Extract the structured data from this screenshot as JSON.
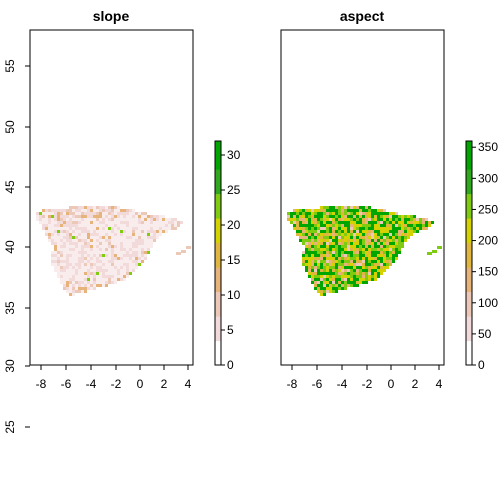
{
  "panels": [
    {
      "title": "slope",
      "y_ticks": [
        "25",
        "30",
        "35",
        "40",
        "45",
        "50",
        "55"
      ],
      "x_ticks": [
        "-8",
        "-6",
        "-4",
        "-2",
        "0",
        "2",
        "4"
      ],
      "legend": {
        "ticks": [
          "0",
          "5",
          "10",
          "15",
          "20",
          "25",
          "30"
        ],
        "min": 0,
        "max": 32
      },
      "palette": [
        "#ffffff",
        "#f2dada",
        "#ecc8b8",
        "#e6b47a",
        "#e0b640",
        "#d4d200",
        "#7ecb10",
        "#2fa81d",
        "#00a600"
      ]
    },
    {
      "title": "aspect",
      "y_ticks": [],
      "x_ticks": [
        "-8",
        "-6",
        "-4",
        "-2",
        "0",
        "2",
        "4"
      ],
      "legend": {
        "ticks": [
          "0",
          "50",
          "100",
          "150",
          "200",
          "250",
          "300",
          "350"
        ],
        "min": 0,
        "max": 360
      },
      "palette": [
        "#ffffff",
        "#f2dada",
        "#ecc8b8",
        "#e6b47a",
        "#e0b640",
        "#d4d200",
        "#7ecb10",
        "#2fa81d",
        "#00a600"
      ]
    }
  ]
}
